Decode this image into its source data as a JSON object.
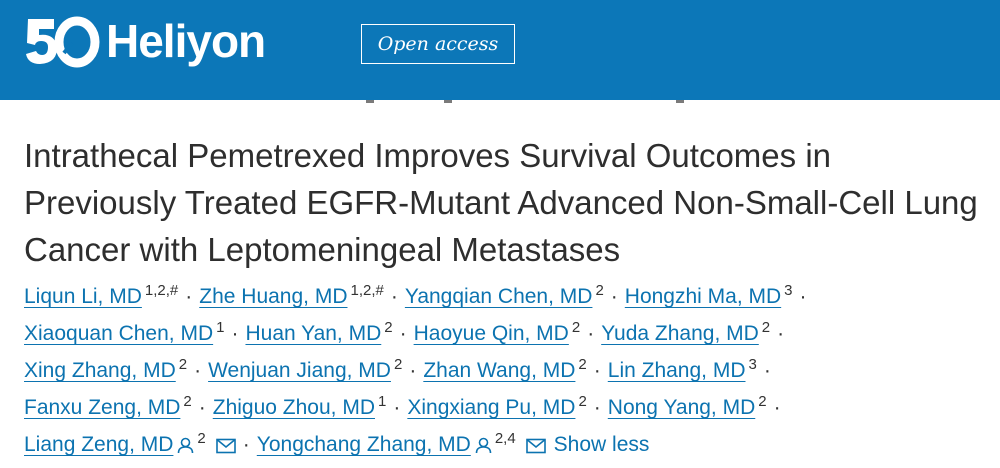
{
  "header": {
    "brand_name": "Heliyon",
    "open_access_label": "Open access",
    "logo_icon": "heliyon-50-logo-icon",
    "background_color": "#0c77b8"
  },
  "article": {
    "title": "Intrathecal Pemetrexed Improves Survival Outcomes in Previously Treated EGFR-Mutant Advanced Non-Small-Cell Lung Cancer with Leptomeningeal Metastases"
  },
  "authors": [
    {
      "name": "Liqun Li, MD",
      "aff": "1,2,#"
    },
    {
      "name": "Zhe Huang, MD",
      "aff": "1,2,#"
    },
    {
      "name": "Yangqian Chen, MD",
      "aff": "2"
    },
    {
      "name": "Hongzhi Ma, MD",
      "aff": "3"
    },
    {
      "name": "Xiaoquan Chen, MD",
      "aff": "1"
    },
    {
      "name": "Huan Yan, MD",
      "aff": "2"
    },
    {
      "name": "Haoyue Qin, MD",
      "aff": "2"
    },
    {
      "name": "Yuda Zhang, MD",
      "aff": "2"
    },
    {
      "name": "Xing Zhang, MD",
      "aff": "2"
    },
    {
      "name": "Wenjuan Jiang, MD",
      "aff": "2"
    },
    {
      "name": "Zhan Wang, MD",
      "aff": "2"
    },
    {
      "name": "Lin Zhang, MD",
      "aff": "3"
    },
    {
      "name": "Fanxu Zeng, MD",
      "aff": "2"
    },
    {
      "name": "Zhiguo Zhou, MD",
      "aff": "1"
    },
    {
      "name": "Xingxiang Pu, MD",
      "aff": "2"
    },
    {
      "name": "Nong Yang, MD",
      "aff": "2"
    },
    {
      "name": "Liang Zeng, MD",
      "aff": "2"
    },
    {
      "name": "Yongchang Zhang, MD",
      "aff": "2,4"
    }
  ],
  "separator": "·",
  "show_less_label": "Show less",
  "link_color": "#0c73b0"
}
